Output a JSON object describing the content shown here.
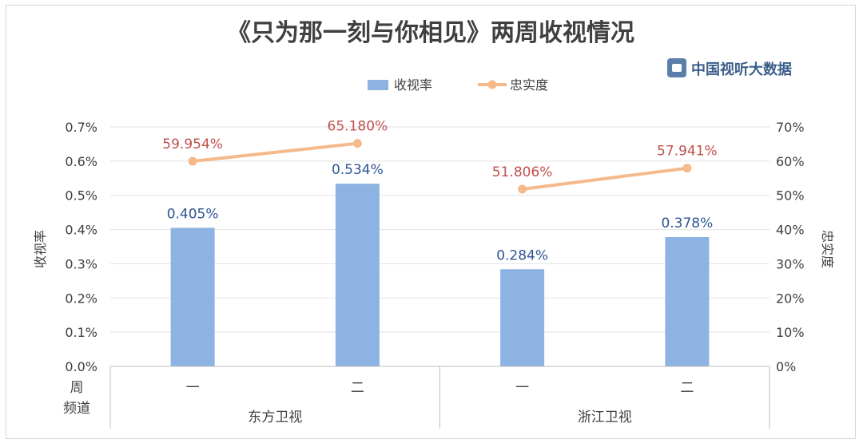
{
  "chart_data": {
    "type": "bar",
    "title": "《只为那一刻与你相见》两周收视情况",
    "watermark": "中国视听大数据",
    "ylabel_left": "收视率",
    "ylabel_right": "忠实度",
    "yticks_left": [
      "0.0%",
      "0.1%",
      "0.2%",
      "0.3%",
      "0.4%",
      "0.5%",
      "0.6%",
      "0.7%"
    ],
    "yticks_right": [
      "0%",
      "10%",
      "20%",
      "30%",
      "40%",
      "50%",
      "60%",
      "70%"
    ],
    "ylim_left": [
      0,
      0.7
    ],
    "ylim_right": [
      0,
      70
    ],
    "grid": true,
    "legend_position": "top",
    "x_row_label_week": "周",
    "x_row_label_channel": "频道",
    "categories": [
      "一",
      "二",
      "一",
      "二"
    ],
    "groups": [
      {
        "label": "东方卫视",
        "count": 2
      },
      {
        "label": "浙江卫视",
        "count": 2
      }
    ],
    "series": [
      {
        "name": "收视率",
        "type": "bar",
        "axis": "left",
        "color": "#8db3e2",
        "values": [
          0.405,
          0.534,
          0.284,
          0.378
        ],
        "labels": [
          "0.405%",
          "0.534%",
          "0.284%",
          "0.378%"
        ],
        "label_color": "#2e5594"
      },
      {
        "name": "忠实度",
        "type": "line",
        "axis": "right",
        "color": "#f6b98a",
        "values": [
          59.954,
          65.18,
          51.806,
          57.941
        ],
        "labels": [
          "59.954%",
          "65.180%",
          "51.806%",
          "57.941%"
        ],
        "label_color": "#c0504d"
      }
    ]
  }
}
